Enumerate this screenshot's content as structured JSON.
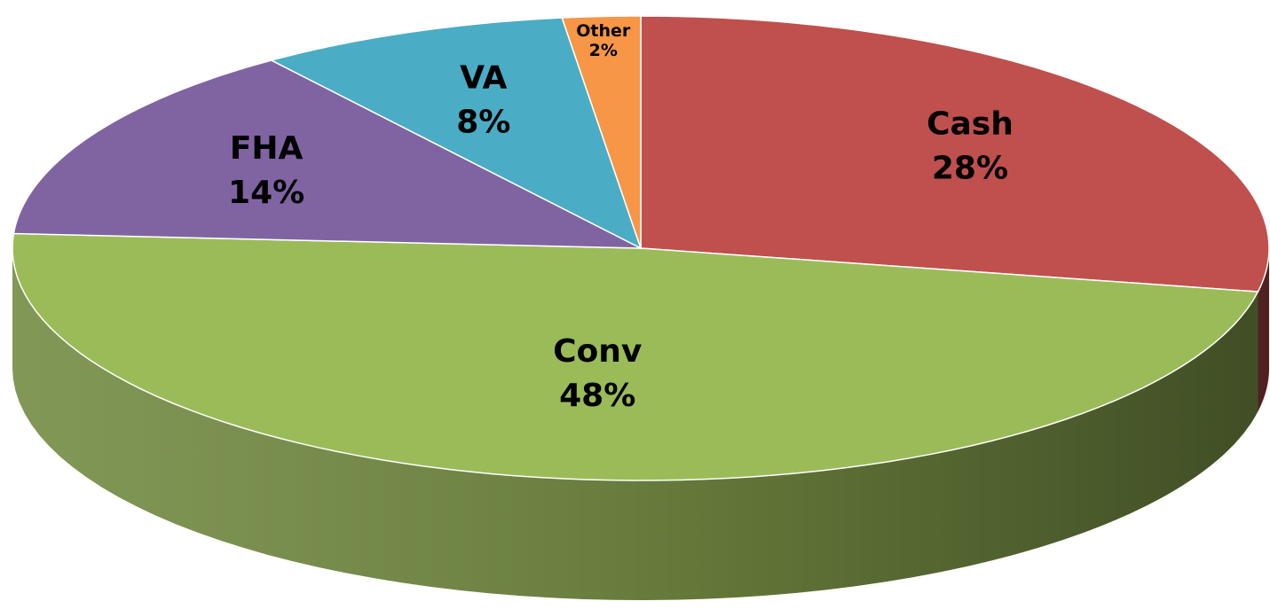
{
  "chart_data": {
    "type": "pie",
    "categories": [
      "Cash",
      "Conv",
      "FHA",
      "VA",
      "Other"
    ],
    "values": [
      28,
      48,
      14,
      8,
      2
    ],
    "value_labels": [
      "28%",
      "48%",
      "14%",
      "8%",
      "2%"
    ],
    "colors": [
      "#c0504d",
      "#9bbb59",
      "#8064a2",
      "#4bacc6",
      "#f79646"
    ]
  }
}
